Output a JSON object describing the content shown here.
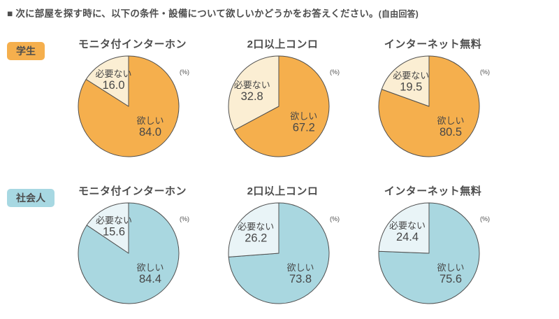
{
  "header": {
    "bullet": "■",
    "title": "次に部屋を探す時に、以下の条件・設備について欲しいかどうかをお答えください。",
    "note": "(自由回答)"
  },
  "groups": [
    {
      "badge": "学生",
      "badge_bg": "#F5AF4D"
    },
    {
      "badge": "社会人",
      "badge_bg": "#A7D8E2"
    }
  ],
  "labels": {
    "wanted": "欲しい",
    "not_needed": "必要ない"
  },
  "chart_data": [
    {
      "type": "pie",
      "group": "学生",
      "title": "モニタ付インターホン",
      "unit": "(%)",
      "slices": [
        {
          "label": "欲しい",
          "value": 84.0,
          "display": "84.0",
          "color": "#F5AF4D"
        },
        {
          "label": "必要ない",
          "value": 16.0,
          "display": "16.0",
          "color": "#FBEED3"
        }
      ]
    },
    {
      "type": "pie",
      "group": "学生",
      "title": "2口以上コンロ",
      "unit": "(%)",
      "slices": [
        {
          "label": "欲しい",
          "value": 67.2,
          "display": "67.2",
          "color": "#F5AF4D"
        },
        {
          "label": "必要ない",
          "value": 32.8,
          "display": "32.8",
          "color": "#FBEED3"
        }
      ]
    },
    {
      "type": "pie",
      "group": "学生",
      "title": "インターネット無料",
      "unit": "(%)",
      "slices": [
        {
          "label": "欲しい",
          "value": 80.5,
          "display": "80.5",
          "color": "#F5AF4D"
        },
        {
          "label": "必要ない",
          "value": 19.5,
          "display": "19.5",
          "color": "#FBEED3"
        }
      ]
    },
    {
      "type": "pie",
      "group": "社会人",
      "title": "モニタ付インターホン",
      "unit": "(%)",
      "slices": [
        {
          "label": "欲しい",
          "value": 84.4,
          "display": "84.4",
          "color": "#A9D7E0"
        },
        {
          "label": "必要ない",
          "value": 15.6,
          "display": "15.6",
          "color": "#E9F4F7"
        }
      ]
    },
    {
      "type": "pie",
      "group": "社会人",
      "title": "2口以上コンロ",
      "unit": "(%)",
      "slices": [
        {
          "label": "欲しい",
          "value": 73.8,
          "display": "73.8",
          "color": "#A9D7E0"
        },
        {
          "label": "必要ない",
          "value": 26.2,
          "display": "26.2",
          "color": "#E9F4F7"
        }
      ]
    },
    {
      "type": "pie",
      "group": "社会人",
      "title": "インターネット無料",
      "unit": "(%)",
      "slices": [
        {
          "label": "欲しい",
          "value": 75.6,
          "display": "75.6",
          "color": "#A9D7E0"
        },
        {
          "label": "必要ない",
          "value": 24.4,
          "display": "24.4",
          "color": "#E9F4F7"
        }
      ]
    }
  ]
}
